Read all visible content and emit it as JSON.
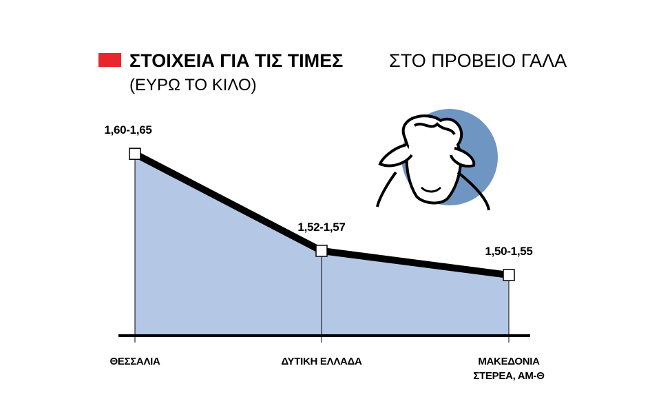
{
  "chart_data": {
    "type": "line",
    "title": "ΣΤΟΙΧΕΙΑ ΓΙΑ ΤΙΣ ΤΙΜΕΣ",
    "title_rest": "ΣΤΟ ΠΡΟΒΕΙΟ ΓΑΛΑ",
    "subtitle": "(ΕΥΡΩ ΤΟ ΚΙΛΟ)",
    "categories": [
      "ΘΕΣΣΑΛΙΑ",
      "ΔΥΤΙΚΗ ΕΛΛΑΔΑ",
      "ΜΑΚΕΔΟΝΙΑ\nΣΤΕΡΕΑ, ΑΜ-Θ"
    ],
    "low": [
      1.6,
      1.52,
      1.5
    ],
    "high": [
      1.65,
      1.57,
      1.55
    ],
    "value_labels": [
      "1,60-1,65",
      "1,52-1,57",
      "1,50-1,55"
    ],
    "color": "#000000",
    "area_color": "#b4c8e6",
    "ylim": [
      1.45,
      1.62
    ]
  }
}
